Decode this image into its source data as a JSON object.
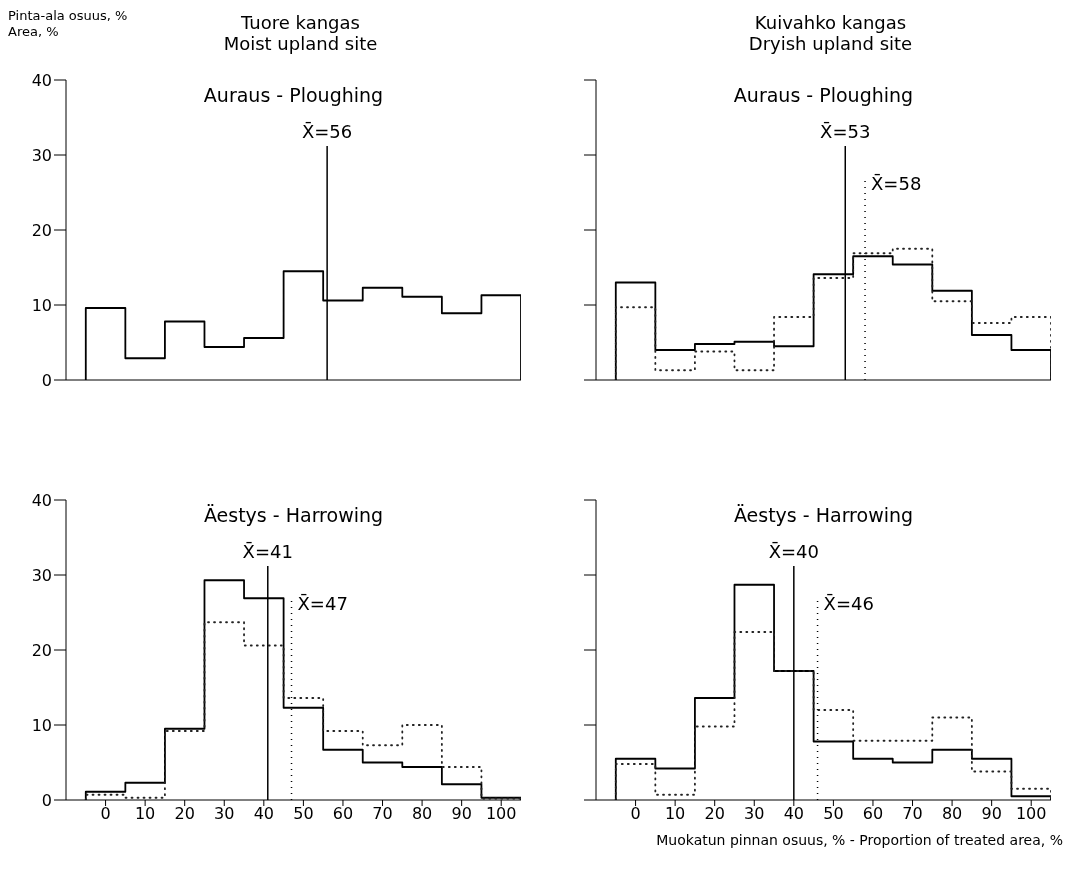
{
  "chart_data": [
    {
      "type": "histogram",
      "title": "Tuore kangas",
      "subtitle": "Moist upland site",
      "ylabel": "Pinta-ala osuus, %\nArea, %",
      "annotations": [
        "Auraus - Ploughing"
      ],
      "bins": [
        -5,
        5,
        15,
        25,
        35,
        45,
        55,
        65,
        75,
        85,
        95,
        105
      ],
      "xlim": [
        -10,
        105
      ],
      "xticks": [
        0,
        10,
        20,
        30,
        40,
        50,
        60,
        70,
        80,
        90,
        100
      ],
      "ylim": [
        0,
        40
      ],
      "yticks": [
        0,
        10,
        20,
        30,
        40
      ],
      "tick_labels": "y",
      "series": [
        {
          "color": "#000000",
          "line_style": "solid",
          "values": [
            9.6,
            2.9,
            7.8,
            4.4,
            5.6,
            14.5,
            10.6,
            12.3,
            11.1,
            8.9,
            11.3
          ]
        }
      ],
      "ref_lines": [
        {
          "axis": "x",
          "value": 56,
          "label": "X̄=56",
          "line_style": "solid",
          "color": "#000000"
        }
      ]
    },
    {
      "type": "histogram",
      "title": "Kuivahko kangas",
      "subtitle": "Dryish upland site",
      "annotations": [
        "Auraus - Ploughing"
      ],
      "bins": [
        -5,
        5,
        15,
        25,
        35,
        45,
        55,
        65,
        75,
        85,
        95,
        105
      ],
      "xlim": [
        -10,
        105
      ],
      "xticks": [
        0,
        10,
        20,
        30,
        40,
        50,
        60,
        70,
        80,
        90,
        100
      ],
      "ylim": [
        0,
        40
      ],
      "yticks": [
        0,
        10,
        20,
        30,
        40
      ],
      "tick_labels": false,
      "series": [
        {
          "color": "#000000",
          "line_style": "solid",
          "values": [
            13.0,
            4.0,
            4.8,
            5.1,
            4.5,
            14.1,
            16.5,
            15.4,
            11.9,
            6.0,
            4.0
          ]
        },
        {
          "color": "#222222",
          "line_style": "dotted",
          "values": [
            9.7,
            1.3,
            3.8,
            1.3,
            8.4,
            13.6,
            16.9,
            17.5,
            10.5,
            7.6,
            8.4
          ]
        }
      ],
      "ref_lines": [
        {
          "axis": "x",
          "value": 53,
          "label": "X̄=53",
          "line_style": "solid",
          "color": "#000000"
        },
        {
          "axis": "x",
          "value": 58,
          "label": "X̄=58",
          "line_style": "dotted",
          "color": "#000000"
        }
      ]
    },
    {
      "type": "histogram",
      "annotations": [
        "Äestys - Harrowing"
      ],
      "bins": [
        -5,
        5,
        15,
        25,
        35,
        45,
        55,
        65,
        75,
        85,
        95,
        105
      ],
      "xlim": [
        -10,
        105
      ],
      "xticks": [
        0,
        10,
        20,
        30,
        40,
        50,
        60,
        70,
        80,
        90,
        100
      ],
      "ylim": [
        0,
        40
      ],
      "yticks": [
        0,
        10,
        20,
        30,
        40
      ],
      "series": [
        {
          "color": "#000000",
          "line_style": "solid",
          "values": [
            1.1,
            2.3,
            9.5,
            29.3,
            26.9,
            12.3,
            6.7,
            5.0,
            4.4,
            2.1,
            0.3
          ]
        },
        {
          "color": "#222222",
          "line_style": "dotted",
          "values": [
            0.7,
            0.3,
            9.2,
            23.7,
            20.6,
            13.6,
            9.2,
            7.3,
            10.0,
            4.4,
            0.2
          ]
        }
      ],
      "ref_lines": [
        {
          "axis": "x",
          "value": 41,
          "label": "X̄=41",
          "line_style": "solid",
          "color": "#000000"
        },
        {
          "axis": "x",
          "value": 47,
          "label": "X̄=47",
          "line_style": "dotted",
          "color": "#000000"
        }
      ]
    },
    {
      "type": "histogram",
      "annotations": [
        "Äestys - Harrowing"
      ],
      "xlabel": "Muokatun pinnan osuus, % - Proportion of treated area, %",
      "bins": [
        -5,
        5,
        15,
        25,
        35,
        45,
        55,
        65,
        75,
        85,
        95,
        105
      ],
      "xlim": [
        -10,
        105
      ],
      "xticks": [
        0,
        10,
        20,
        30,
        40,
        50,
        60,
        70,
        80,
        90,
        100
      ],
      "ylim": [
        0,
        40
      ],
      "yticks": [
        0,
        10,
        20,
        30,
        40
      ],
      "tick_labels": "x",
      "series": [
        {
          "color": "#000000",
          "line_style": "solid",
          "values": [
            5.5,
            4.2,
            13.6,
            28.7,
            17.2,
            7.8,
            5.5,
            5.0,
            6.7,
            5.5,
            0.5
          ]
        },
        {
          "color": "#222222",
          "line_style": "dotted",
          "values": [
            4.8,
            0.7,
            9.8,
            22.4,
            17.2,
            12.0,
            7.9,
            7.9,
            11.0,
            3.8,
            1.5
          ]
        }
      ],
      "ref_lines": [
        {
          "axis": "x",
          "value": 40,
          "label": "X̄=40",
          "line_style": "solid",
          "color": "#000000"
        },
        {
          "axis": "x",
          "value": 46,
          "label": "X̄=46",
          "line_style": "dotted",
          "color": "#000000"
        }
      ]
    }
  ]
}
